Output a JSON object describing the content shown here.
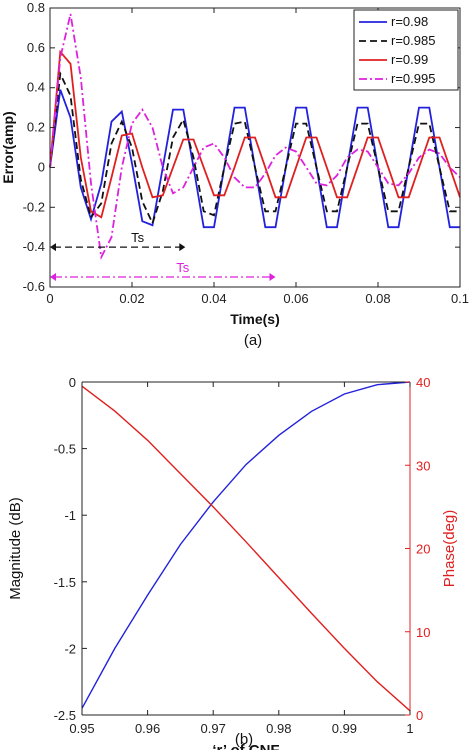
{
  "chart_data": [
    {
      "type": "line",
      "caption": "(a)",
      "xlabel": "Time(s)",
      "ylabel": "Error(amp)",
      "xlim": [
        0,
        0.1
      ],
      "ylim": [
        -0.6,
        0.8
      ],
      "xticks": [
        0,
        0.02,
        0.04,
        0.06,
        0.08,
        0.1
      ],
      "xtick_labels": [
        "0",
        "0.02",
        "0.04",
        "0.06",
        "0.08",
        "0.1"
      ],
      "yticks": [
        -0.6,
        -0.4,
        -0.2,
        0,
        0.2,
        0.4,
        0.6,
        0.8
      ],
      "ytick_labels": [
        "-0.6",
        "-0.4",
        "-0.2",
        "0",
        "0.2",
        "0.4",
        "0.6",
        "0.8"
      ],
      "grid": false,
      "legend_position": "top-right",
      "series": [
        {
          "name": "r=0.98",
          "color": "#2222dd",
          "style": "solid",
          "x": [
            0,
            0.0025,
            0.005,
            0.0075,
            0.01,
            0.0125,
            0.015,
            0.0175,
            0.02,
            0.0225,
            0.025,
            0.0275,
            0.03,
            0.0325,
            0.035,
            0.0375,
            0.04,
            0.0425,
            0.045,
            0.0475,
            0.05,
            0.0525,
            0.055,
            0.0575,
            0.06,
            0.0625,
            0.065,
            0.0675,
            0.07,
            0.0725,
            0.075,
            0.0775,
            0.08,
            0.0825,
            0.085,
            0.0875,
            0.09,
            0.0925,
            0.095,
            0.0975,
            0.1
          ],
          "y": [
            0,
            0.39,
            0.25,
            -0.1,
            -0.26,
            -0.08,
            0.23,
            0.28,
            0.02,
            -0.27,
            -0.29,
            0.0,
            0.29,
            0.29,
            0.0,
            -0.3,
            -0.3,
            0.0,
            0.3,
            0.3,
            0.0,
            -0.3,
            -0.3,
            0.0,
            0.3,
            0.3,
            0.0,
            -0.3,
            -0.3,
            0.0,
            0.3,
            0.3,
            0.0,
            -0.3,
            -0.3,
            0.0,
            0.3,
            0.3,
            0.0,
            -0.3,
            -0.3
          ]
        },
        {
          "name": "r=0.985",
          "color": "#111111",
          "style": "dashed",
          "x": [
            0,
            0.0025,
            0.005,
            0.0075,
            0.01,
            0.0125,
            0.015,
            0.0175,
            0.02,
            0.0225,
            0.025,
            0.0275,
            0.03,
            0.0325,
            0.035,
            0.0375,
            0.04,
            0.0425,
            0.045,
            0.0475,
            0.05,
            0.0525,
            0.055,
            0.0575,
            0.06,
            0.0625,
            0.065,
            0.0675,
            0.07,
            0.0725,
            0.075,
            0.0775,
            0.08,
            0.0825,
            0.085,
            0.0875,
            0.09,
            0.0925,
            0.095,
            0.0975,
            0.1
          ],
          "y": [
            0,
            0.47,
            0.36,
            -0.06,
            -0.25,
            -0.18,
            0.12,
            0.23,
            0.1,
            -0.17,
            -0.28,
            -0.12,
            0.15,
            0.24,
            0.05,
            -0.22,
            -0.24,
            0.0,
            0.22,
            0.23,
            0.0,
            -0.22,
            -0.22,
            0.0,
            0.22,
            0.22,
            0.0,
            -0.22,
            -0.22,
            0.0,
            0.22,
            0.22,
            0.0,
            -0.22,
            -0.22,
            0.0,
            0.22,
            0.22,
            0.0,
            -0.22,
            -0.22
          ]
        },
        {
          "name": "r=0.99",
          "color": "#e02020",
          "style": "solid",
          "x": [
            0,
            0.0025,
            0.005,
            0.0075,
            0.01,
            0.0125,
            0.015,
            0.0175,
            0.02,
            0.0225,
            0.025,
            0.0275,
            0.03,
            0.0325,
            0.035,
            0.0375,
            0.04,
            0.0425,
            0.045,
            0.0475,
            0.05,
            0.0525,
            0.055,
            0.0575,
            0.06,
            0.0625,
            0.065,
            0.0675,
            0.07,
            0.0725,
            0.075,
            0.0775,
            0.08,
            0.0825,
            0.085,
            0.0875,
            0.09,
            0.0925,
            0.095,
            0.0975,
            0.1
          ],
          "y": [
            0,
            0.58,
            0.52,
            0.05,
            -0.22,
            -0.25,
            -0.05,
            0.16,
            0.17,
            0.0,
            -0.15,
            -0.14,
            0.0,
            0.14,
            0.14,
            0.0,
            -0.14,
            -0.14,
            0.0,
            0.15,
            0.15,
            0.0,
            -0.15,
            -0.15,
            0.0,
            0.15,
            0.15,
            0.0,
            -0.15,
            -0.15,
            0.0,
            0.15,
            0.15,
            0.0,
            -0.15,
            -0.15,
            0.0,
            0.15,
            0.15,
            0.0,
            -0.15
          ]
        },
        {
          "name": "r=0.995",
          "color": "#dd22dd",
          "style": "dashdot",
          "x": [
            0,
            0.0025,
            0.005,
            0.0075,
            0.01,
            0.0125,
            0.015,
            0.0175,
            0.02,
            0.0225,
            0.025,
            0.0275,
            0.03,
            0.0325,
            0.035,
            0.0375,
            0.04,
            0.0425,
            0.045,
            0.0475,
            0.05,
            0.0525,
            0.055,
            0.0575,
            0.06,
            0.0625,
            0.065,
            0.0675,
            0.07,
            0.0725,
            0.075,
            0.0775,
            0.08,
            0.0825,
            0.085,
            0.0875,
            0.09,
            0.0925,
            0.095,
            0.0975,
            0.1
          ],
          "y": [
            0,
            0.55,
            0.77,
            0.45,
            -0.08,
            -0.45,
            -0.35,
            0.0,
            0.22,
            0.29,
            0.2,
            0.0,
            -0.13,
            -0.1,
            0.0,
            0.1,
            0.12,
            0.05,
            -0.05,
            -0.1,
            -0.1,
            -0.03,
            0.06,
            0.1,
            0.08,
            0.0,
            -0.08,
            -0.09,
            -0.04,
            0.05,
            0.09,
            0.08,
            0.0,
            -0.08,
            -0.09,
            -0.03,
            0.05,
            0.09,
            0.07,
            0.0,
            -0.05
          ]
        }
      ],
      "annotations": [
        {
          "text": "Ts",
          "color": "#111111",
          "style": "dashed",
          "x_from": 0,
          "x_to": 0.033,
          "y": -0.4
        },
        {
          "text": "Ts",
          "color": "#dd22dd",
          "style": "dashdot",
          "x_from": 0,
          "x_to": 0.055,
          "y": -0.55
        }
      ]
    },
    {
      "type": "line",
      "caption": "(b)",
      "xlabel": "‘r’ of CNF",
      "ylabel_left": "Magnitude (dB)",
      "ylabel_right": "Phase(deg)",
      "xlim": [
        0.95,
        1
      ],
      "ylim_left": [
        -2.5,
        0
      ],
      "ylim_right": [
        0,
        40
      ],
      "xticks": [
        0.95,
        0.96,
        0.97,
        0.98,
        0.99,
        1
      ],
      "xtick_labels": [
        "0.95",
        "0.96",
        "0.97",
        "0.98",
        "0.99",
        "1"
      ],
      "yticks_left": [
        -2.5,
        -2,
        -1.5,
        -1,
        -0.5,
        0
      ],
      "ytick_labels_left": [
        "-2.5",
        "-2",
        "-1.5",
        "-1",
        "-0.5",
        "0"
      ],
      "yticks_right": [
        0,
        10,
        20,
        30,
        40
      ],
      "ytick_labels_right": [
        "0",
        "10",
        "20",
        "30",
        "40"
      ],
      "right_axis_color": "#e02020",
      "grid": false,
      "series": [
        {
          "axis": "left",
          "color": "#2222dd",
          "style": "solid",
          "x": [
            0.95,
            0.955,
            0.96,
            0.965,
            0.97,
            0.975,
            0.98,
            0.985,
            0.99,
            0.995,
            1
          ],
          "y": [
            -2.45,
            -2.0,
            -1.6,
            -1.22,
            -0.9,
            -0.62,
            -0.4,
            -0.22,
            -0.09,
            -0.02,
            0
          ]
        },
        {
          "axis": "right",
          "color": "#e02020",
          "style": "solid",
          "x": [
            0.95,
            0.955,
            0.96,
            0.965,
            0.97,
            0.975,
            0.98,
            0.985,
            0.99,
            0.995,
            1
          ],
          "y": [
            39.5,
            36.5,
            33.0,
            29.0,
            25.0,
            20.8,
            16.5,
            12.2,
            8.0,
            4.0,
            0.5
          ]
        }
      ]
    }
  ]
}
